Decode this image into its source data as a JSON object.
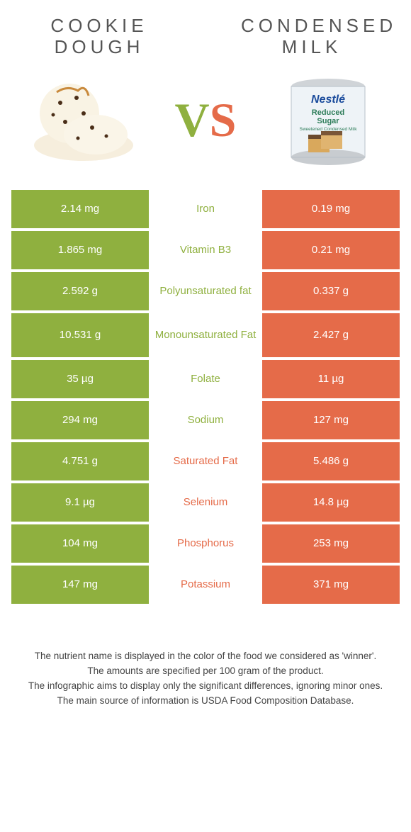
{
  "colors": {
    "left": "#8fb03f",
    "right": "#e56b49",
    "titleText": "#555555",
    "footerText": "#444444",
    "background": "#ffffff"
  },
  "leftTitle": "COOKIE DOUGH",
  "rightTitle": "CONDENSED MILK",
  "vs": {
    "v": "V",
    "s": "S"
  },
  "rows": [
    {
      "left": "2.14 mg",
      "label": "Iron",
      "winner": "left",
      "right": "0.19 mg"
    },
    {
      "left": "1.865 mg",
      "label": "Vitamin B3",
      "winner": "left",
      "right": "0.21 mg"
    },
    {
      "left": "2.592 g",
      "label": "Polyunsaturated fat",
      "winner": "left",
      "right": "0.337 g"
    },
    {
      "left": "10.531 g",
      "label": "Monounsaturated Fat",
      "winner": "left",
      "right": "2.427 g",
      "tall": true
    },
    {
      "left": "35 µg",
      "label": "Folate",
      "winner": "left",
      "right": "11 µg"
    },
    {
      "left": "294 mg",
      "label": "Sodium",
      "winner": "left",
      "right": "127 mg"
    },
    {
      "left": "4.751 g",
      "label": "Saturated Fat",
      "winner": "right",
      "right": "5.486 g"
    },
    {
      "left": "9.1 µg",
      "label": "Selenium",
      "winner": "right",
      "right": "14.8 µg"
    },
    {
      "left": "104 mg",
      "label": "Phosphorus",
      "winner": "right",
      "right": "253 mg"
    },
    {
      "left": "147 mg",
      "label": "Potassium",
      "winner": "right",
      "right": "371 mg"
    }
  ],
  "footer": {
    "line1": "The nutrient name is displayed in the color of the food we considered as 'winner'.",
    "line2": "The amounts are specified per 100 gram of the product.",
    "line3": "The infographic aims to display only the significant differences, ignoring minor ones.",
    "line4": "The main source of information is USDA Food Composition Database."
  }
}
